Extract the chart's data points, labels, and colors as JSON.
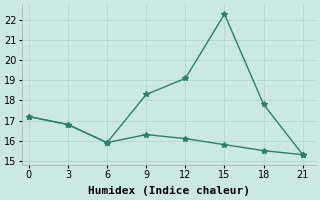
{
  "line1_x": [
    0,
    3,
    6,
    9,
    12,
    15,
    18,
    21
  ],
  "line1_y": [
    17.2,
    16.8,
    15.9,
    18.3,
    19.1,
    22.3,
    17.8,
    15.3
  ],
  "line2_x": [
    0,
    3,
    6,
    9,
    12,
    15,
    18,
    21
  ],
  "line2_y": [
    17.2,
    16.8,
    15.9,
    16.3,
    16.1,
    15.8,
    15.5,
    15.3
  ],
  "line_color": "#2e7d6e",
  "bg_color": "#cce8e5",
  "grid_color": "#b8d8d5",
  "xlabel": "Humidex (Indice chaleur)",
  "xlim": [
    -0.5,
    22
  ],
  "ylim": [
    14.8,
    22.8
  ],
  "xticks": [
    0,
    3,
    6,
    9,
    12,
    15,
    18,
    21
  ],
  "yticks": [
    15,
    16,
    17,
    18,
    19,
    20,
    21,
    22
  ],
  "marker": "*",
  "marker_size": 4,
  "linewidth": 1.0,
  "xlabel_fontsize": 8,
  "tick_fontsize": 7
}
